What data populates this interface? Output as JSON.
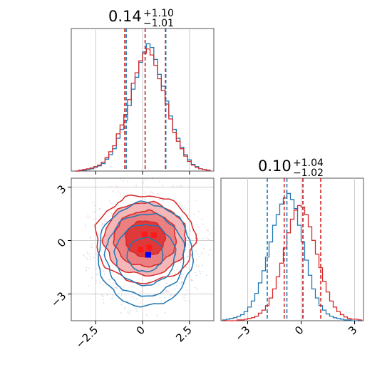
{
  "chart_data": [
    {
      "type": "histogram",
      "panel": "marginal-x",
      "title_value": "0.14",
      "title_plus": "+1.10",
      "title_minus": "−1.01",
      "xlim": [
        -3.8,
        3.8
      ],
      "xticks": [
        -2.5,
        0.0,
        2.5
      ],
      "grid": true,
      "series": [
        {
          "color": "#1f77b4",
          "quantiles": [
            -0.87,
            0.14,
            1.24
          ],
          "bins_x": [
            -3.6,
            -3.4,
            -3.2,
            -3.0,
            -2.8,
            -2.6,
            -2.4,
            -2.2,
            -2.0,
            -1.8,
            -1.6,
            -1.4,
            -1.2,
            -1.0,
            -0.8,
            -0.6,
            -0.4,
            -0.2,
            0.0,
            0.2,
            0.4,
            0.6,
            0.8,
            1.0,
            1.2,
            1.4,
            1.6,
            1.8,
            2.0,
            2.2,
            2.4,
            2.6,
            2.8,
            3.0,
            3.2,
            3.4
          ],
          "counts": [
            0,
            1,
            1,
            2,
            3,
            5,
            7,
            10,
            16,
            22,
            30,
            44,
            56,
            68,
            88,
            110,
            126,
            146,
            160,
            171,
            166,
            150,
            130,
            114,
            94,
            74,
            56,
            44,
            32,
            22,
            15,
            9,
            6,
            3,
            2,
            1
          ]
        },
        {
          "color": "#d62728",
          "quantiles": [
            -0.95,
            0.14,
            1.22
          ],
          "bins_x": [
            -3.6,
            -3.4,
            -3.2,
            -3.0,
            -2.8,
            -2.6,
            -2.4,
            -2.2,
            -2.0,
            -1.8,
            -1.6,
            -1.4,
            -1.2,
            -1.0,
            -0.8,
            -0.6,
            -0.4,
            -0.2,
            0.0,
            0.2,
            0.4,
            0.6,
            0.8,
            1.0,
            1.2,
            1.4,
            1.6,
            1.8,
            2.0,
            2.2,
            2.4,
            2.6,
            2.8,
            3.0,
            3.2,
            3.4
          ],
          "counts": [
            0,
            1,
            2,
            3,
            4,
            6,
            8,
            12,
            18,
            26,
            34,
            50,
            62,
            76,
            96,
            118,
            132,
            148,
            158,
            164,
            156,
            142,
            124,
            108,
            90,
            70,
            52,
            40,
            30,
            20,
            13,
            8,
            5,
            3,
            2,
            1
          ]
        }
      ]
    },
    {
      "type": "histogram",
      "panel": "marginal-y",
      "title_value": "0.10",
      "title_plus": "+1.04",
      "title_minus": "−1.02",
      "xlim": [
        -4.5,
        3.5
      ],
      "xticks": [
        -3,
        0,
        3
      ],
      "grid": true,
      "series": [
        {
          "color": "#1f77b4",
          "quantiles": [
            -1.9,
            -0.8,
            0.1
          ],
          "bins_x": [
            -4.4,
            -4.2,
            -4.0,
            -3.8,
            -3.6,
            -3.4,
            -3.2,
            -3.0,
            -2.8,
            -2.6,
            -2.4,
            -2.2,
            -2.0,
            -1.8,
            -1.6,
            -1.4,
            -1.2,
            -1.0,
            -0.8,
            -0.6,
            -0.4,
            -0.2,
            0.0,
            0.2,
            0.4,
            0.6,
            0.8,
            1.0,
            1.2,
            1.4,
            1.6,
            1.8,
            2.0,
            2.2,
            2.4,
            2.6,
            2.8,
            3.0,
            3.2
          ],
          "counts": [
            1,
            2,
            3,
            4,
            6,
            8,
            12,
            18,
            26,
            36,
            50,
            66,
            84,
            104,
            126,
            140,
            154,
            162,
            168,
            160,
            148,
            126,
            104,
            80,
            60,
            42,
            30,
            20,
            14,
            9,
            6,
            4,
            3,
            2,
            1,
            1,
            0,
            0,
            0
          ]
        },
        {
          "color": "#d62728",
          "quantiles": [
            -0.95,
            0.1,
            1.1
          ],
          "bins_x": [
            -4.4,
            -4.2,
            -4.0,
            -3.8,
            -3.6,
            -3.4,
            -3.2,
            -3.0,
            -2.8,
            -2.6,
            -2.4,
            -2.2,
            -2.0,
            -1.8,
            -1.6,
            -1.4,
            -1.2,
            -1.0,
            -0.8,
            -0.6,
            -0.4,
            -0.2,
            0.0,
            0.2,
            0.4,
            0.6,
            0.8,
            1.0,
            1.2,
            1.4,
            1.6,
            1.8,
            2.0,
            2.2,
            2.4,
            2.6,
            2.8,
            3.0,
            3.2
          ],
          "counts": [
            0,
            0,
            0,
            0,
            1,
            1,
            2,
            3,
            4,
            6,
            10,
            14,
            20,
            30,
            42,
            58,
            76,
            96,
            116,
            134,
            146,
            152,
            150,
            140,
            124,
            106,
            88,
            70,
            52,
            38,
            26,
            18,
            12,
            8,
            5,
            3,
            2,
            2,
            1
          ]
        }
      ]
    },
    {
      "type": "contour",
      "panel": "joint",
      "xlim": [
        -3.8,
        3.8
      ],
      "ylim": [
        -4.5,
        3.5
      ],
      "xticks": [
        -2.5,
        0.0,
        2.5
      ],
      "yticks": [
        -3,
        0,
        3
      ],
      "grid": true,
      "series": [
        {
          "color": "#1f77b4",
          "filled": false,
          "center": [
            0.14,
            -0.8
          ],
          "levels": [
            {
              "rx": 0.95,
              "ry": 0.95
            },
            {
              "rx": 1.6,
              "ry": 1.7
            },
            {
              "rx": 2.1,
              "ry": 2.3
            },
            {
              "rx": 2.5,
              "ry": 2.9
            }
          ],
          "peak": [
            0.3,
            -0.8
          ]
        },
        {
          "color": "#d62728",
          "filled": true,
          "center": [
            0.14,
            0.1
          ],
          "fill_colors": [
            "#f4b6b7",
            "#ec8081",
            "#e0393a"
          ],
          "levels": [
            {
              "rx": 1.05,
              "ry": 1.0
            },
            {
              "rx": 1.65,
              "ry": 1.55
            },
            {
              "rx": 2.2,
              "ry": 2.05
            },
            {
              "rx": 2.65,
              "ry": 2.45
            }
          ],
          "peak": [
            0.35,
            0.1
          ]
        }
      ]
    }
  ]
}
